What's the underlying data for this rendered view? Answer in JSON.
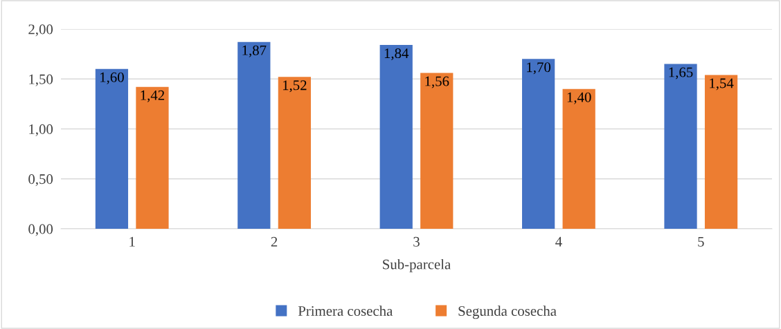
{
  "chart_data": {
    "type": "bar",
    "xlabel": "Sub-parcela",
    "categories": [
      "1",
      "2",
      "3",
      "4",
      "5"
    ],
    "series": [
      {
        "name": "Primera cosecha",
        "color": "#4472c4",
        "values": [
          1.6,
          1.87,
          1.84,
          1.7,
          1.65
        ],
        "value_labels": [
          "1,60",
          "1,87",
          "1,84",
          "1,70",
          "1,65"
        ]
      },
      {
        "name": "Segunda cosecha",
        "color": "#ed7d31",
        "values": [
          1.42,
          1.52,
          1.56,
          1.4,
          1.54
        ],
        "value_labels": [
          "1,42",
          "1,52",
          "1,56",
          "1,40",
          "1,54"
        ]
      }
    ],
    "ylim": [
      0,
      2
    ],
    "yticks": [
      {
        "value": 0,
        "label": "0,00"
      },
      {
        "value": 0.5,
        "label": "0,50"
      },
      {
        "value": 1,
        "label": "1,00"
      },
      {
        "value": 1.5,
        "label": "1,50"
      },
      {
        "value": 2,
        "label": "2,00"
      }
    ],
    "grid": "y",
    "legend": "bottom"
  }
}
